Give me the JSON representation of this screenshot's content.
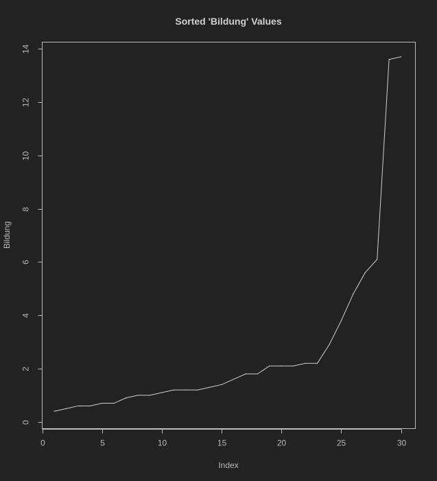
{
  "colors": {
    "background": "#222222",
    "axis": "#bdbdbd",
    "line": "#d0d0d0",
    "text": "#b8b8b8"
  },
  "chart_data": {
    "type": "line",
    "title": "Sorted 'Bildung' Values",
    "xlabel": "Index",
    "ylabel": "Bildung",
    "xlim": [
      0,
      31.2
    ],
    "ylim": [
      -0.25,
      14.25
    ],
    "x_ticks": [
      0,
      5,
      10,
      15,
      20,
      25,
      30
    ],
    "x_tick_labels": [
      "0",
      "5",
      "10",
      "15",
      "20",
      "25",
      "30"
    ],
    "y_ticks": [
      0,
      2,
      4,
      6,
      8,
      10,
      12,
      14
    ],
    "y_tick_labels": [
      "0",
      "2",
      "4",
      "6",
      "8",
      "10",
      "12",
      "14"
    ],
    "grid": false,
    "legend": "none",
    "series": [
      {
        "x": [
          1,
          2,
          3,
          4,
          5,
          6,
          7,
          8,
          9,
          10,
          11,
          12,
          13,
          14,
          15,
          16,
          17,
          18,
          19,
          20,
          21,
          22,
          23,
          24,
          25,
          26,
          27,
          28,
          29,
          30
        ],
        "values": [
          0.4,
          0.5,
          0.6,
          0.6,
          0.7,
          0.7,
          0.9,
          1.0,
          1.0,
          1.1,
          1.2,
          1.2,
          1.2,
          1.3,
          1.4,
          1.6,
          1.8,
          1.8,
          2.1,
          2.1,
          2.1,
          2.2,
          2.2,
          2.9,
          3.8,
          4.8,
          5.6,
          6.1,
          13.6,
          13.7
        ]
      }
    ]
  }
}
